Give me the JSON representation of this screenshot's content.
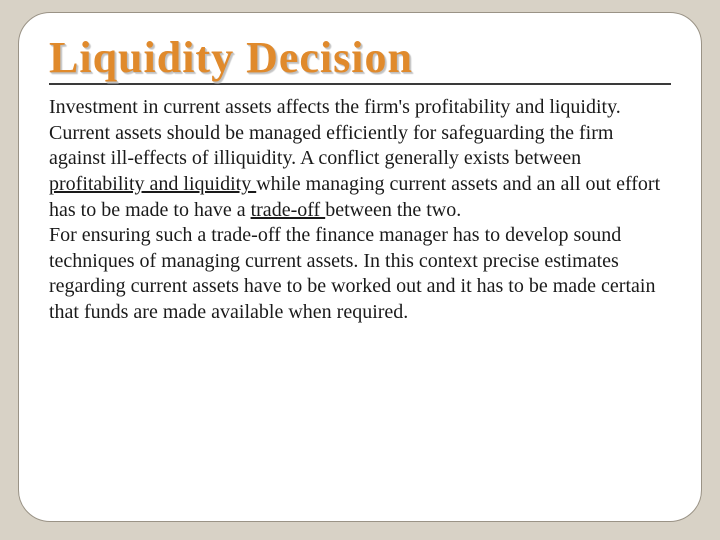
{
  "slide": {
    "title": "Liquidity Decision",
    "para1_part1": "Investment in current assets affects the firm's profitability and liquidity. Current assets should be managed efficiently for safeguarding the firm against ill-effects of illiquidity. A conflict generally exists between ",
    "underline1": "profitability and liquidity ",
    "para1_part2": "while managing current assets and an all out effort has to be made to have a ",
    "underline2": "trade-off ",
    "para1_part3": "between the two.",
    "para2": "For ensuring such a trade-off the finance manager has to develop sound techniques of managing current assets. In this context precise estimates regarding current assets have to be worked out and it has to be made certain that funds are made available when required."
  },
  "style": {
    "background_color": "#d8d2c6",
    "frame_background": "#ffffff",
    "frame_border_color": "#9a9386",
    "frame_border_radius": 32,
    "title_color": "#e08a2c",
    "title_fontsize": 44,
    "title_underline_color": "#3a3a3a",
    "body_fontsize": 20,
    "body_color": "#1a1a1a",
    "title_font": "Georgia",
    "body_font": "Times New Roman"
  }
}
